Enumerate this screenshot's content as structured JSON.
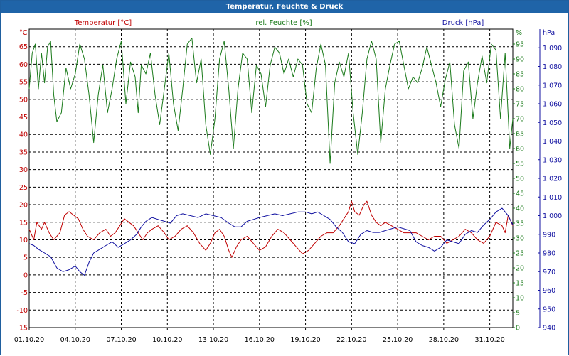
{
  "window": {
    "title": "Temperatur, Feuchte & Druck"
  },
  "chart_data": {
    "type": "line",
    "title": "Temperatur, Feuchte & Druck",
    "colors": {
      "temperature": "#c00000",
      "humidity": "#1a7a1a",
      "pressure": "#1010a0",
      "title_bar": "#1f64a8"
    },
    "grid": true,
    "axes": {
      "x": {
        "tick_labels": [
          "01.10.20",
          "04.10.20",
          "07.10.20",
          "10.10.20",
          "13.10.20",
          "16.10.20",
          "19.10.20",
          "22.10.20",
          "25.10.20",
          "28.10.20",
          "31.10.20"
        ],
        "tick_days": [
          0,
          3,
          6,
          9,
          12,
          15,
          18,
          21,
          24,
          27,
          30
        ],
        "range_days": [
          0,
          31.5
        ]
      },
      "y_left": {
        "label": "Temperatur [°C]",
        "unit": "°C",
        "range": [
          -15,
          70
        ],
        "ticks": [
          -15,
          -10,
          -5,
          0,
          5,
          10,
          15,
          20,
          25,
          30,
          35,
          40,
          45,
          50,
          55,
          60,
          65
        ]
      },
      "y_mid": {
        "label": "rel. Feuchte [%]",
        "unit": "%",
        "range": [
          0,
          100
        ],
        "ticks": [
          0,
          5,
          10,
          15,
          20,
          25,
          30,
          35,
          40,
          45,
          50,
          55,
          60,
          65,
          70,
          75,
          80,
          85,
          90,
          95
        ]
      },
      "y_right": {
        "label": "Druck [hPa]",
        "unit": "hPa",
        "range": [
          940,
          1100
        ],
        "ticks": [
          "940",
          "950",
          "960",
          "970",
          "980",
          "990",
          "1.000",
          "1.010",
          "1.020",
          "1.030",
          "1.040",
          "1.050",
          "1.060",
          "1.070",
          "1.080",
          "1.090"
        ],
        "tick_values": [
          940,
          950,
          960,
          970,
          980,
          990,
          1000,
          1010,
          1020,
          1030,
          1040,
          1050,
          1060,
          1070,
          1080,
          1090
        ]
      }
    },
    "series": [
      {
        "name": "Temperatur [°C]",
        "axis": "y_left",
        "points": [
          [
            0,
            13
          ],
          [
            0.3,
            10
          ],
          [
            0.5,
            15
          ],
          [
            0.8,
            13
          ],
          [
            1,
            15
          ],
          [
            1.3,
            12
          ],
          [
            1.6,
            10
          ],
          [
            2,
            12
          ],
          [
            2.3,
            17
          ],
          [
            2.6,
            18
          ],
          [
            2.9,
            17
          ],
          [
            3.2,
            16
          ],
          [
            3.5,
            13
          ],
          [
            3.8,
            11
          ],
          [
            4.2,
            10
          ],
          [
            4.6,
            12
          ],
          [
            5,
            13
          ],
          [
            5.3,
            11
          ],
          [
            5.6,
            12
          ],
          [
            5.9,
            14
          ],
          [
            6.2,
            16
          ],
          [
            6.5,
            15
          ],
          [
            6.8,
            14
          ],
          [
            7.1,
            12
          ],
          [
            7.4,
            10
          ],
          [
            7.7,
            12
          ],
          [
            8,
            13
          ],
          [
            8.4,
            14
          ],
          [
            8.8,
            12
          ],
          [
            9.1,
            10
          ],
          [
            9.5,
            11
          ],
          [
            9.9,
            13
          ],
          [
            10.3,
            14
          ],
          [
            10.7,
            12
          ],
          [
            11.1,
            9
          ],
          [
            11.5,
            7
          ],
          [
            11.8,
            9
          ],
          [
            12.1,
            12
          ],
          [
            12.4,
            13
          ],
          [
            12.7,
            11
          ],
          [
            13,
            7
          ],
          [
            13.2,
            5
          ],
          [
            13.5,
            8
          ],
          [
            13.8,
            10
          ],
          [
            14.2,
            11
          ],
          [
            14.6,
            9
          ],
          [
            15,
            7
          ],
          [
            15.4,
            8
          ],
          [
            15.8,
            11
          ],
          [
            16.2,
            13
          ],
          [
            16.6,
            12
          ],
          [
            17,
            10
          ],
          [
            17.4,
            8
          ],
          [
            17.8,
            6
          ],
          [
            18.2,
            7
          ],
          [
            18.6,
            9
          ],
          [
            19,
            11
          ],
          [
            19.4,
            12
          ],
          [
            19.8,
            12
          ],
          [
            20.2,
            14
          ],
          [
            20.5,
            16
          ],
          [
            20.8,
            18
          ],
          [
            21,
            21
          ],
          [
            21.2,
            18
          ],
          [
            21.5,
            17
          ],
          [
            21.8,
            20
          ],
          [
            22,
            21
          ],
          [
            22.3,
            17
          ],
          [
            22.6,
            15
          ],
          [
            22.9,
            14
          ],
          [
            23.2,
            15
          ],
          [
            23.6,
            14
          ],
          [
            24,
            13
          ],
          [
            24.4,
            12
          ],
          [
            24.8,
            12
          ],
          [
            25.2,
            12
          ],
          [
            25.6,
            11
          ],
          [
            26,
            10
          ],
          [
            26.4,
            11
          ],
          [
            26.8,
            11
          ],
          [
            27.2,
            9
          ],
          [
            27.6,
            10
          ],
          [
            28,
            11
          ],
          [
            28.4,
            13
          ],
          [
            28.8,
            12
          ],
          [
            29.2,
            10
          ],
          [
            29.6,
            9
          ],
          [
            30,
            11
          ],
          [
            30.4,
            15
          ],
          [
            30.8,
            14
          ],
          [
            31,
            12
          ],
          [
            31.2,
            17
          ],
          [
            31.5,
            14
          ]
        ]
      },
      {
        "name": "rel. Feuchte [%]",
        "axis": "y_mid",
        "points": [
          [
            0,
            80
          ],
          [
            0.2,
            92
          ],
          [
            0.4,
            95
          ],
          [
            0.6,
            80
          ],
          [
            0.8,
            92
          ],
          [
            1,
            82
          ],
          [
            1.2,
            94
          ],
          [
            1.4,
            96
          ],
          [
            1.6,
            78
          ],
          [
            1.8,
            69
          ],
          [
            2.1,
            72
          ],
          [
            2.4,
            87
          ],
          [
            2.7,
            80
          ],
          [
            3,
            85
          ],
          [
            3.3,
            95
          ],
          [
            3.6,
            90
          ],
          [
            3.9,
            78
          ],
          [
            4.2,
            62
          ],
          [
            4.5,
            78
          ],
          [
            4.8,
            88
          ],
          [
            5.1,
            72
          ],
          [
            5.4,
            80
          ],
          [
            5.7,
            90
          ],
          [
            6,
            96
          ],
          [
            6.3,
            75
          ],
          [
            6.6,
            89
          ],
          [
            6.9,
            84
          ],
          [
            7.1,
            72
          ],
          [
            7.3,
            88
          ],
          [
            7.6,
            85
          ],
          [
            7.9,
            92
          ],
          [
            8.2,
            78
          ],
          [
            8.5,
            68
          ],
          [
            8.8,
            80
          ],
          [
            9.1,
            92
          ],
          [
            9.4,
            75
          ],
          [
            9.7,
            66
          ],
          [
            10,
            80
          ],
          [
            10.3,
            95
          ],
          [
            10.6,
            97
          ],
          [
            10.9,
            82
          ],
          [
            11.2,
            90
          ],
          [
            11.5,
            68
          ],
          [
            11.8,
            58
          ],
          [
            12.1,
            70
          ],
          [
            12.4,
            90
          ],
          [
            12.7,
            96
          ],
          [
            13,
            80
          ],
          [
            13.3,
            60
          ],
          [
            13.6,
            80
          ],
          [
            13.9,
            92
          ],
          [
            14.2,
            90
          ],
          [
            14.5,
            72
          ],
          [
            14.8,
            88
          ],
          [
            15.1,
            85
          ],
          [
            15.4,
            74
          ],
          [
            15.7,
            88
          ],
          [
            16,
            94
          ],
          [
            16.3,
            92
          ],
          [
            16.6,
            85
          ],
          [
            16.9,
            90
          ],
          [
            17.2,
            84
          ],
          [
            17.5,
            90
          ],
          [
            17.8,
            88
          ],
          [
            18.1,
            75
          ],
          [
            18.4,
            72
          ],
          [
            18.7,
            87
          ],
          [
            19,
            95
          ],
          [
            19.3,
            88
          ],
          [
            19.6,
            55
          ],
          [
            19.9,
            82
          ],
          [
            20.2,
            89
          ],
          [
            20.5,
            84
          ],
          [
            20.8,
            92
          ],
          [
            21.1,
            72
          ],
          [
            21.4,
            58
          ],
          [
            21.7,
            72
          ],
          [
            22,
            90
          ],
          [
            22.3,
            96
          ],
          [
            22.6,
            90
          ],
          [
            22.9,
            62
          ],
          [
            23.2,
            80
          ],
          [
            23.5,
            88
          ],
          [
            23.8,
            95
          ],
          [
            24.1,
            96
          ],
          [
            24.4,
            88
          ],
          [
            24.7,
            80
          ],
          [
            25,
            84
          ],
          [
            25.3,
            82
          ],
          [
            25.6,
            87
          ],
          [
            25.9,
            94
          ],
          [
            26.2,
            88
          ],
          [
            26.5,
            82
          ],
          [
            26.8,
            74
          ],
          [
            27.1,
            83
          ],
          [
            27.4,
            89
          ],
          [
            27.7,
            68
          ],
          [
            28,
            60
          ],
          [
            28.3,
            86
          ],
          [
            28.6,
            89
          ],
          [
            28.9,
            70
          ],
          [
            29.2,
            82
          ],
          [
            29.5,
            91
          ],
          [
            29.8,
            82
          ],
          [
            30.1,
            95
          ],
          [
            30.4,
            93
          ],
          [
            30.7,
            70
          ],
          [
            31,
            92
          ],
          [
            31.3,
            60
          ],
          [
            31.5,
            70
          ]
        ]
      },
      {
        "name": "Druck [hPa]",
        "axis": "y_right",
        "points": [
          [
            0,
            985
          ],
          [
            0.3,
            984
          ],
          [
            0.6,
            982
          ],
          [
            1,
            980
          ],
          [
            1.4,
            978
          ],
          [
            1.8,
            972
          ],
          [
            2.2,
            970
          ],
          [
            2.6,
            971
          ],
          [
            3,
            973
          ],
          [
            3.3,
            970
          ],
          [
            3.6,
            968
          ],
          [
            3.9,
            975
          ],
          [
            4.2,
            980
          ],
          [
            4.6,
            982
          ],
          [
            5,
            984
          ],
          [
            5.4,
            986
          ],
          [
            5.8,
            983
          ],
          [
            6.2,
            985
          ],
          [
            6.6,
            987
          ],
          [
            7,
            990
          ],
          [
            7.3,
            994
          ],
          [
            7.6,
            997
          ],
          [
            8,
            999
          ],
          [
            8.4,
            998
          ],
          [
            8.8,
            997
          ],
          [
            9.2,
            996
          ],
          [
            9.6,
            1000
          ],
          [
            10,
            1001
          ],
          [
            10.5,
            1000
          ],
          [
            11,
            999
          ],
          [
            11.5,
            1001
          ],
          [
            12,
            1000
          ],
          [
            12.5,
            999
          ],
          [
            13,
            996
          ],
          [
            13.4,
            994
          ],
          [
            13.8,
            994
          ],
          [
            14.2,
            997
          ],
          [
            14.6,
            998
          ],
          [
            15,
            999
          ],
          [
            15.5,
            1000
          ],
          [
            16,
            1001
          ],
          [
            16.5,
            1000
          ],
          [
            17,
            1001
          ],
          [
            17.5,
            1002
          ],
          [
            18,
            1002
          ],
          [
            18.4,
            1001
          ],
          [
            18.8,
            1002
          ],
          [
            19.2,
            1000
          ],
          [
            19.6,
            998
          ],
          [
            20,
            994
          ],
          [
            20.4,
            991
          ],
          [
            20.8,
            986
          ],
          [
            21.2,
            985
          ],
          [
            21.6,
            990
          ],
          [
            22,
            992
          ],
          [
            22.4,
            991
          ],
          [
            22.8,
            991
          ],
          [
            23.2,
            992
          ],
          [
            23.6,
            993
          ],
          [
            24,
            994
          ],
          [
            24.4,
            993
          ],
          [
            24.8,
            992
          ],
          [
            25.2,
            986
          ],
          [
            25.6,
            984
          ],
          [
            26,
            983
          ],
          [
            26.4,
            981
          ],
          [
            26.8,
            983
          ],
          [
            27.2,
            987
          ],
          [
            27.6,
            986
          ],
          [
            28,
            985
          ],
          [
            28.4,
            990
          ],
          [
            28.8,
            992
          ],
          [
            29.2,
            991
          ],
          [
            29.6,
            995
          ],
          [
            30,
            998
          ],
          [
            30.4,
            1002
          ],
          [
            30.8,
            1004
          ],
          [
            31.2,
            1000
          ],
          [
            31.5,
            995
          ]
        ]
      }
    ]
  }
}
